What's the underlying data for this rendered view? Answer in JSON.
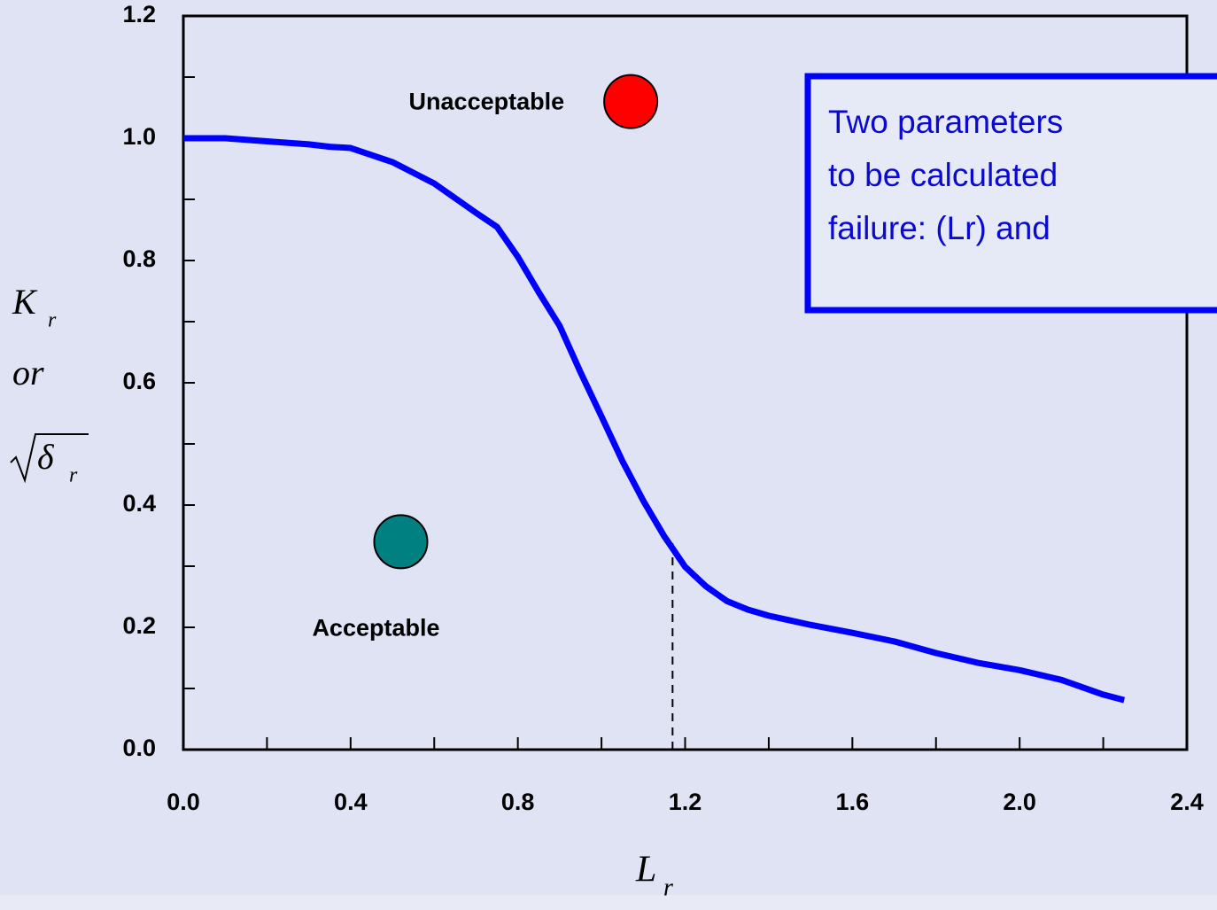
{
  "chart_data": {
    "type": "line",
    "xlim": [
      0,
      2.4
    ],
    "ylim": [
      0,
      1.2
    ],
    "xticks": [
      {
        "value": 0,
        "label": "0.0"
      },
      0.4,
      0.8,
      1.2,
      1.6,
      {
        "value": 2.0,
        "label": "2.0"
      },
      2.4
    ],
    "yticks": [
      {
        "value": 0,
        "label": "0.0"
      },
      0.2,
      0.4,
      0.6,
      0.8,
      {
        "value": 1.0,
        "label": "1.0"
      },
      1.2
    ],
    "xminorticks": [
      0.2,
      0.6,
      1.0,
      1.4,
      1.8,
      2.2
    ],
    "yminorticks": [
      0.1,
      0.3,
      0.5,
      0.7,
      0.9,
      1.1
    ],
    "xlabel": {
      "text": "L",
      "sub": "r"
    },
    "ylabel": [
      {
        "text": "K",
        "sub": "r"
      },
      {
        "text": "or"
      },
      {
        "text": "δ",
        "sub": "r",
        "sqrt": true
      }
    ],
    "series": [
      {
        "color": "#0000ff",
        "x": [
          0,
          0.1,
          0.2,
          0.3,
          0.35,
          0.4,
          0.5,
          0.6,
          0.7,
          0.75,
          0.8,
          0.85,
          0.9,
          0.95,
          1.0,
          1.05,
          1.1,
          1.15,
          1.2,
          1.25,
          1.3,
          1.35,
          1.4,
          1.5,
          1.6,
          1.7,
          1.8,
          1.9,
          2.0,
          2.1,
          2.2,
          2.25
        ],
        "values": [
          1.0,
          1.0,
          0.995,
          0.99,
          0.986,
          0.984,
          0.961,
          0.926,
          0.878,
          0.855,
          0.806,
          0.748,
          0.693,
          0.617,
          0.545,
          0.472,
          0.407,
          0.349,
          0.299,
          0.267,
          0.243,
          0.229,
          0.219,
          0.204,
          0.191,
          0.177,
          0.158,
          0.142,
          0.13,
          0.114,
          0.09,
          0.081
        ]
      }
    ],
    "points": [
      {
        "label": "Unacceptable",
        "x": 1.07,
        "y": 1.06,
        "color": "#ff0000"
      },
      {
        "label": "Acceptable",
        "x": 0.52,
        "y": 0.34,
        "color": "#008080"
      }
    ],
    "dashed_line": {
      "x": 1.17,
      "y": 0.34
    },
    "annotation": {
      "lines": [
        "Two parameters",
        "to be calculated",
        "failure: (Lr) and"
      ]
    }
  }
}
